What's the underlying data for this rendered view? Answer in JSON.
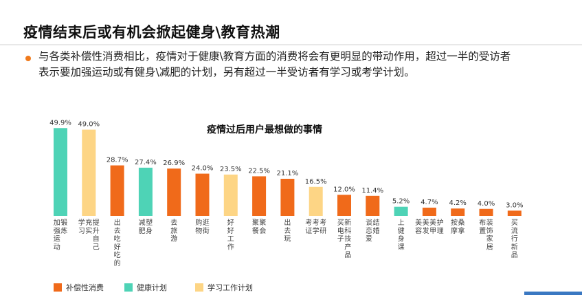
{
  "header": {
    "title": "疫情结束后或有机会掀起健身\\教育热潮"
  },
  "summary": {
    "line1": "与各类补偿性消费相比，疫情对于健康\\教育方面的消费将会有更明显的带动作用，超过一半的受访者",
    "line2": "表示要加强运动或有健身\\减肥的计划，另有超过一半受访者有学习或考学计划。"
  },
  "colors": {
    "accent": "#f07a1c",
    "compensatory": "#f06a1a",
    "health": "#4ed3b6",
    "study": "#fdd585"
  },
  "chart_data": {
    "type": "bar",
    "title": "疫情过后用户最想做的事情",
    "xlabel": "",
    "ylabel": "",
    "ylim": [
      0,
      50
    ],
    "grid": false,
    "legend_position": "bottom-left",
    "value_suffix": "%",
    "categories": [
      "加强运动 锻炼",
      "学习 充实 提升自己",
      "出去吃好吃的",
      "减肥 塑身",
      "去旅游",
      "购物 逛街",
      "好好工作",
      "聚餐 聚会",
      "出去玩",
      "考证 考学 考研",
      "买电子 新科技产品",
      "谈恋爱 结婚",
      "上健身课",
      "美容 美发 美甲 护理",
      "按摩 桑拿",
      "布置 装饰家居",
      "买流行新品"
    ],
    "values": [
      49.9,
      49.0,
      28.7,
      27.4,
      26.9,
      24.0,
      23.5,
      22.5,
      21.1,
      16.5,
      12.0,
      11.4,
      5.2,
      4.7,
      4.2,
      4.0,
      3.0
    ],
    "value_labels": [
      "49.9%",
      "49.0%",
      "28.7%",
      "27.4%",
      "26.9%",
      "24.0%",
      "23.5%",
      "22.5%",
      "21.1%",
      "16.5%",
      "12.0%",
      "11.4%",
      "5.2%",
      "4.7%",
      "4.2%",
      "4.0%",
      "3.0%"
    ],
    "groups": [
      "health",
      "study",
      "compensatory",
      "health",
      "compensatory",
      "compensatory",
      "study",
      "compensatory",
      "compensatory",
      "study",
      "compensatory",
      "compensatory",
      "health",
      "compensatory",
      "compensatory",
      "compensatory",
      "compensatory"
    ],
    "legend": [
      {
        "key": "compensatory",
        "label": "补偿性消费"
      },
      {
        "key": "health",
        "label": "健康计划"
      },
      {
        "key": "study",
        "label": "学习工作计划"
      }
    ]
  }
}
